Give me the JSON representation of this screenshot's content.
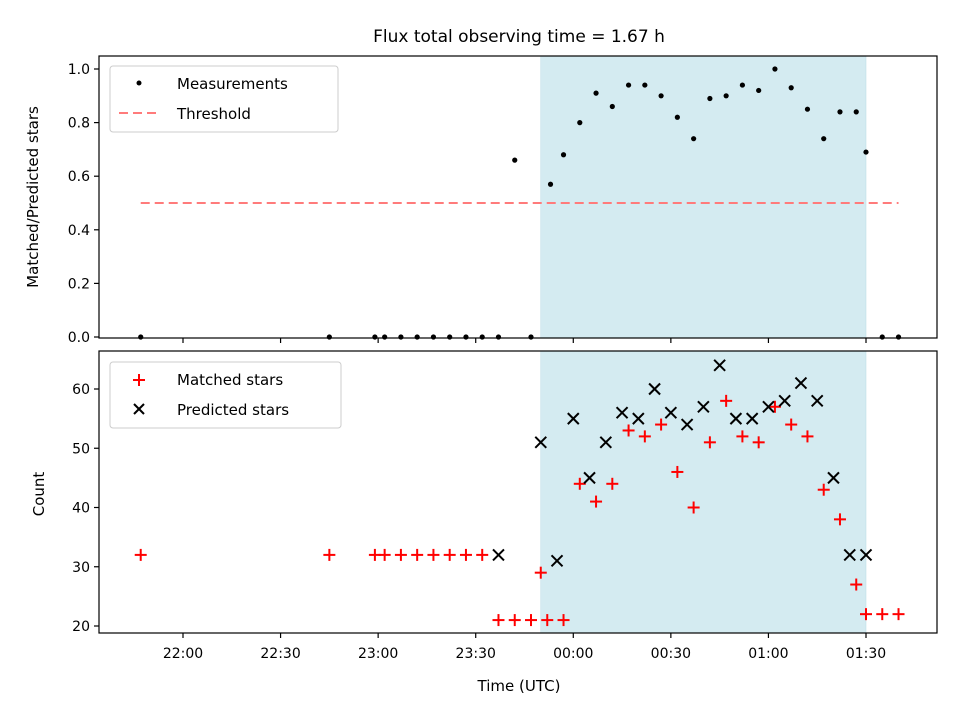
{
  "chart_data": [
    {
      "type": "scatter",
      "title": "Flux total observing time = 1.67 h",
      "ylabel": "Matched/Predicted stars",
      "ylim": [
        0,
        1.05
      ],
      "yticks": [
        0.0,
        0.2,
        0.4,
        0.6,
        0.8,
        1.0
      ],
      "ytick_labels": [
        "0.0",
        "0.2",
        "0.4",
        "0.6",
        "0.8",
        "1.0"
      ],
      "grid": false,
      "legend_position": "top-left",
      "shaded_interval": [
        "23:50",
        "01:30"
      ],
      "shade_color": "#d4ebf1",
      "series": [
        {
          "name": "Measurements",
          "marker": "dot",
          "color": "#000000",
          "x": [
            "21:47",
            "22:45",
            "22:59",
            "23:02",
            "23:07",
            "23:12",
            "23:17",
            "23:22",
            "23:27",
            "23:32",
            "23:37",
            "23:42",
            "23:47",
            "23:53",
            "23:57",
            "00:02",
            "00:07",
            "00:12",
            "00:17",
            "00:22",
            "00:27",
            "00:32",
            "00:37",
            "00:42",
            "00:47",
            "00:52",
            "00:57",
            "01:02",
            "01:07",
            "01:12",
            "01:17",
            "01:22",
            "01:27",
            "01:30",
            "01:35",
            "01:40"
          ],
          "y": [
            0.0,
            0.0,
            0.0,
            0.0,
            0.0,
            0.0,
            0.0,
            0.0,
            0.0,
            0.0,
            0.0,
            0.66,
            0.0,
            0.57,
            0.68,
            0.8,
            0.91,
            0.86,
            0.94,
            0.94,
            0.9,
            0.82,
            0.74,
            0.89,
            0.9,
            0.94,
            0.92,
            1.0,
            0.93,
            0.85,
            0.74,
            0.84,
            0.84,
            0.69,
            0.0,
            0.0
          ]
        },
        {
          "name": "Threshold",
          "line_style": "dashed",
          "color": "#ff7b7b",
          "x": [
            "21:47",
            "23:50",
            "01:40"
          ],
          "y": [
            0.5,
            0.5,
            0.5
          ]
        }
      ]
    },
    {
      "type": "scatter",
      "xlabel": "Time (UTC)",
      "ylabel": "Count",
      "ylim": [
        19,
        66
      ],
      "yticks": [
        20,
        30,
        40,
        50,
        60
      ],
      "xticks": [
        "22:00",
        "22:30",
        "23:00",
        "23:30",
        "00:00",
        "00:30",
        "01:00",
        "01:30"
      ],
      "grid": false,
      "legend_position": "top-left",
      "shaded_interval": [
        "23:50",
        "01:30"
      ],
      "shade_color": "#d4ebf1",
      "series": [
        {
          "name": "Matched stars",
          "marker": "plus",
          "color": "#ff0000",
          "x": [
            "21:47",
            "22:45",
            "22:59",
            "23:02",
            "23:07",
            "23:12",
            "23:17",
            "23:22",
            "23:27",
            "23:32",
            "23:37",
            "23:42",
            "23:47",
            "23:52",
            "23:50",
            "23:57",
            "00:02",
            "00:07",
            "00:12",
            "00:17",
            "00:22",
            "00:27",
            "00:32",
            "00:37",
            "00:42",
            "00:47",
            "00:52",
            "00:57",
            "01:02",
            "01:07",
            "01:12",
            "01:17",
            "01:22",
            "01:27",
            "01:30",
            "01:35",
            "01:40"
          ],
          "y": [
            32,
            32,
            32,
            32,
            32,
            32,
            32,
            32,
            32,
            32,
            21,
            21,
            21,
            21,
            29,
            21,
            44,
            41,
            44,
            53,
            52,
            54,
            46,
            40,
            51,
            58,
            52,
            51,
            57,
            54,
            52,
            43,
            38,
            27,
            22,
            22,
            22
          ]
        },
        {
          "name": "Predicted stars",
          "marker": "x",
          "color": "#000000",
          "x": [
            "23:37",
            "23:50",
            "23:55",
            "00:00",
            "00:05",
            "00:10",
            "00:15",
            "00:20",
            "00:25",
            "00:30",
            "00:35",
            "00:40",
            "00:45",
            "00:50",
            "00:55",
            "01:00",
            "01:05",
            "01:10",
            "01:15",
            "01:20",
            "01:25",
            "01:30"
          ],
          "y": [
            32,
            51,
            31,
            55,
            45,
            51,
            56,
            55,
            60,
            56,
            54,
            57,
            64,
            55,
            55,
            57,
            58,
            61,
            58,
            45,
            32,
            32
          ]
        }
      ]
    }
  ]
}
